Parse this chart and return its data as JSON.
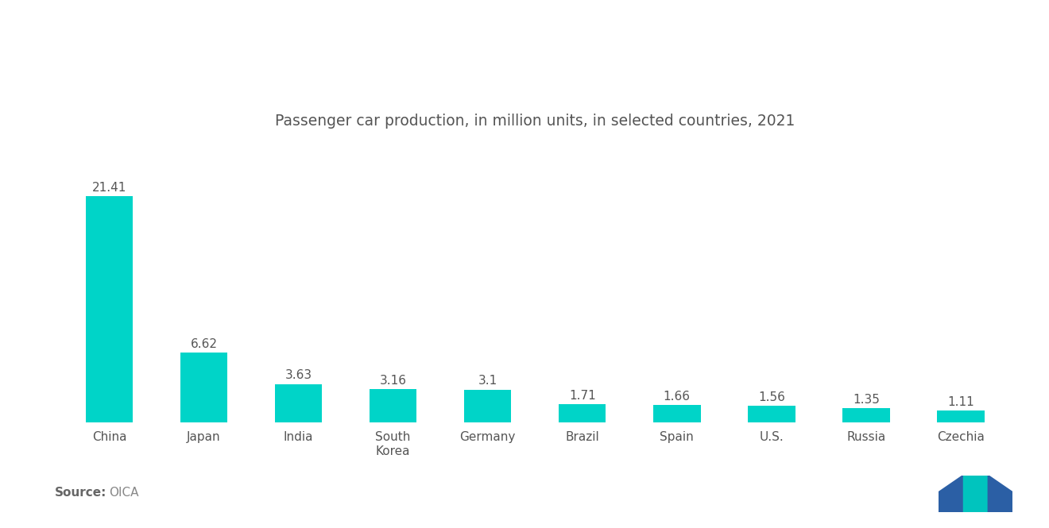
{
  "title": "Passenger car production, in million units, in selected countries, 2021",
  "categories": [
    "China",
    "Japan",
    "India",
    "South\nKorea",
    "Germany",
    "Brazil",
    "Spain",
    "U.S.",
    "Russia",
    "Czechia"
  ],
  "values": [
    21.41,
    6.62,
    3.63,
    3.16,
    3.1,
    1.71,
    1.66,
    1.56,
    1.35,
    1.11
  ],
  "bar_color": "#00D4C8",
  "background_color": "#FFFFFF",
  "title_color": "#555555",
  "label_color": "#555555",
  "title_fontsize": 13.5,
  "value_fontsize": 11,
  "category_fontsize": 11,
  "source_fontsize": 11,
  "ylim": [
    0,
    26
  ],
  "bar_width": 0.5,
  "logo_blue": "#2B5FA5",
  "logo_teal": "#00C4BE"
}
